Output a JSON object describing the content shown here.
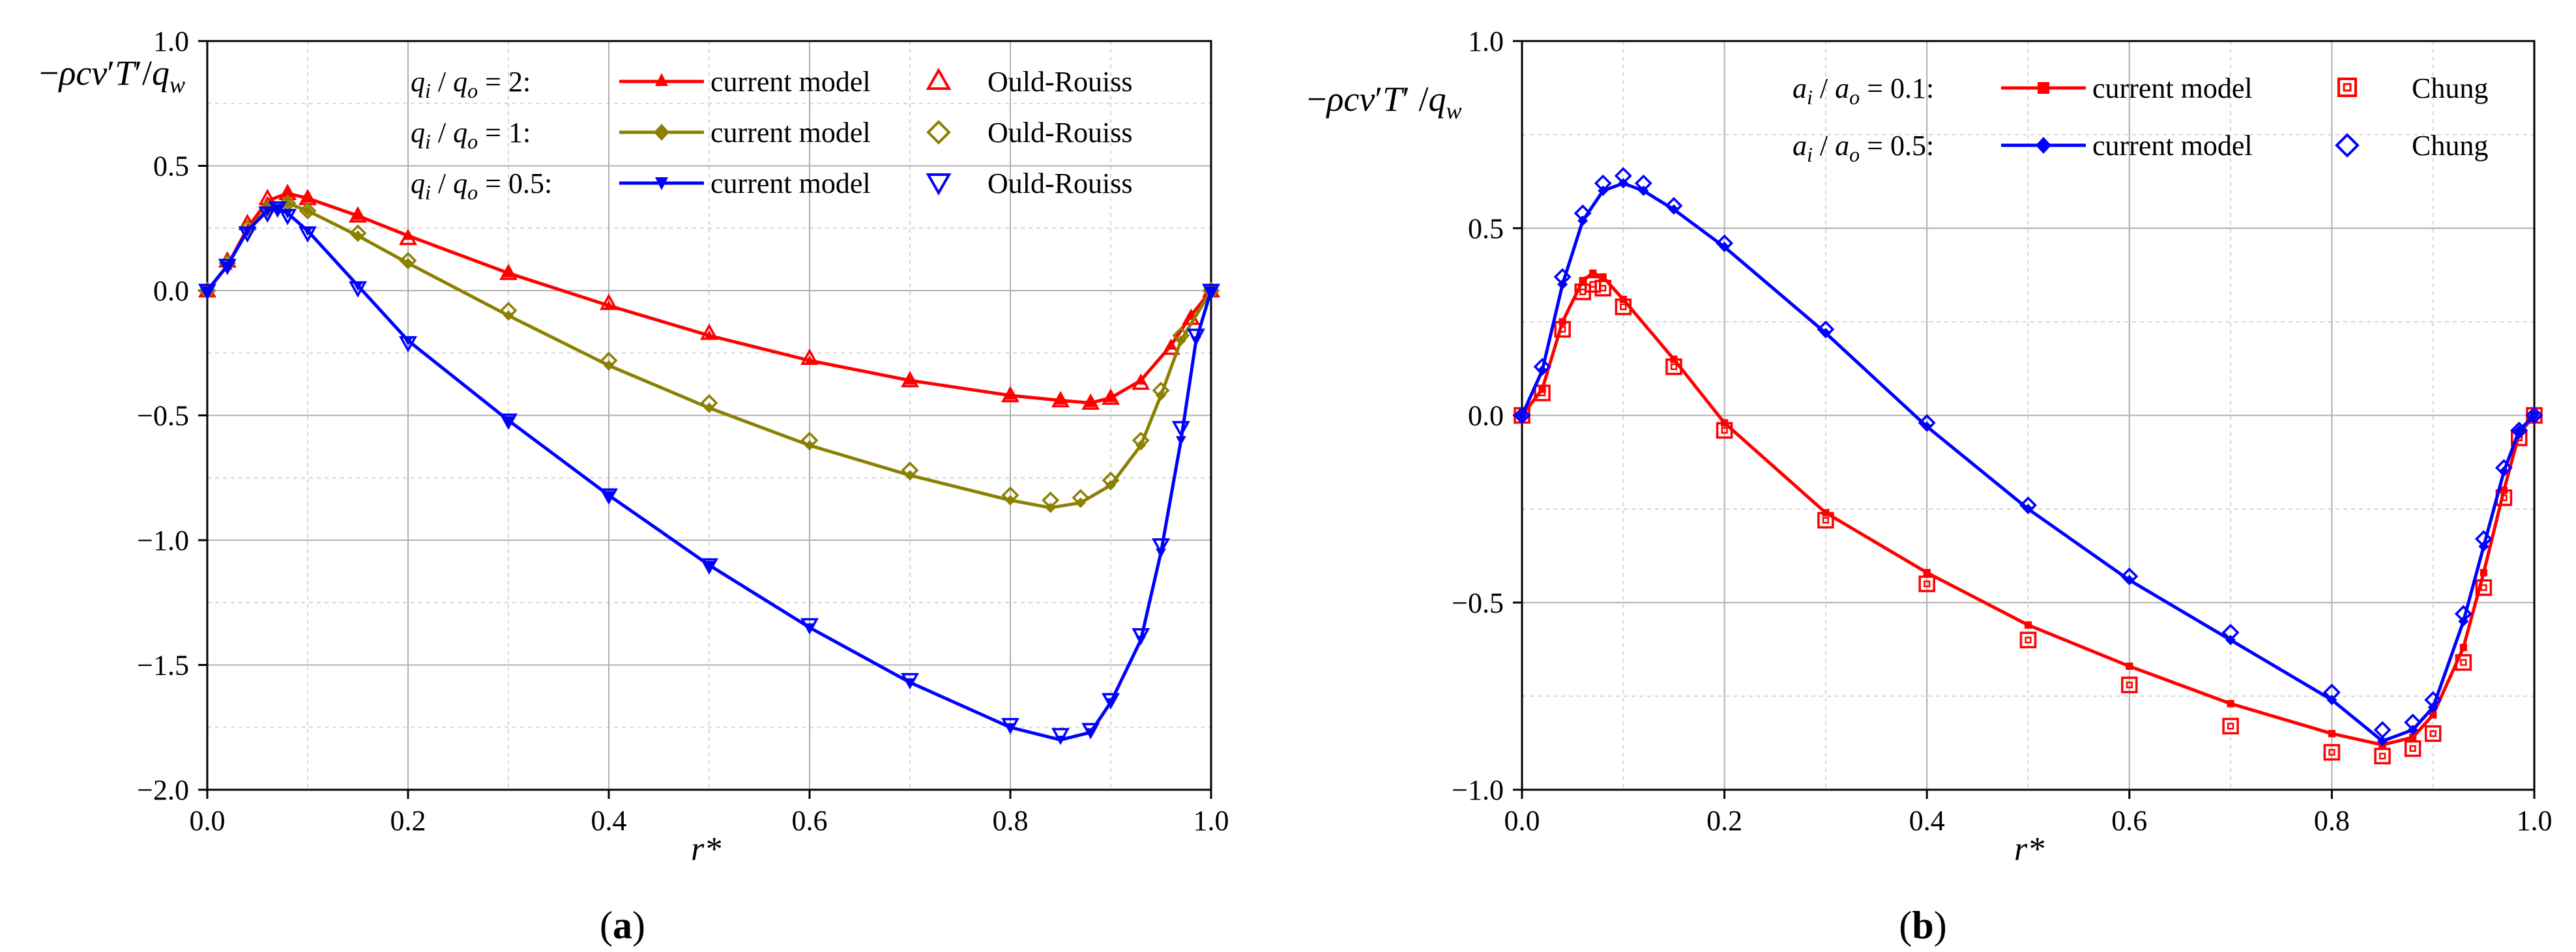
{
  "chart_data": [
    {
      "type": "line",
      "panel_label": "a",
      "caption": "(a)",
      "xlabel": "r*",
      "ylabel": "−ρcv'T'/q_w",
      "xlim": [
        0.0,
        1.0
      ],
      "ylim": [
        -2.0,
        1.0
      ],
      "xticks": [
        0.0,
        0.2,
        0.4,
        0.6,
        0.8,
        1.0
      ],
      "yticks": [
        1.0,
        0.5,
        0.0,
        -0.5,
        -1.0,
        -1.5,
        -2.0
      ],
      "xtick_labels": [
        "0.0",
        "0.2",
        "0.4",
        "0.6",
        "0.8",
        "1.0"
      ],
      "ytick_labels": [
        "1.0",
        "0.5",
        "0.0",
        "−0.5",
        "−1.0",
        "−1.5",
        "−2.0"
      ],
      "grid": true,
      "legend": [
        {
          "condition": "= 2:",
          "model": "current model",
          "ref": "Ould-Rouiss"
        },
        {
          "condition": "= 1:",
          "model": "current model",
          "ref": "Ould-Rouiss"
        },
        {
          "condition": "= 0.5:",
          "model": "current model",
          "ref": "Ould-Rouiss"
        }
      ],
      "series": [
        {
          "name": "q_i/q_o = 2 current model",
          "color": "#FF0000",
          "style": "line",
          "marker": "triangle",
          "x": [
            0.0,
            0.02,
            0.04,
            0.06,
            0.08,
            0.1,
            0.15,
            0.2,
            0.3,
            0.4,
            0.5,
            0.6,
            0.7,
            0.8,
            0.85,
            0.88,
            0.9,
            0.93,
            0.96,
            0.98,
            1.0
          ],
          "y": [
            0.0,
            0.1,
            0.25,
            0.36,
            0.39,
            0.37,
            0.3,
            0.22,
            0.07,
            -0.06,
            -0.18,
            -0.28,
            -0.36,
            -0.42,
            -0.44,
            -0.45,
            -0.43,
            -0.36,
            -0.22,
            -0.1,
            0.0
          ]
        },
        {
          "name": "q_i/q_o = 2 Ould-Rouiss",
          "color": "#FF0000",
          "style": "marker",
          "marker": "triangle-open",
          "x": [
            0.0,
            0.02,
            0.04,
            0.06,
            0.08,
            0.1,
            0.15,
            0.2,
            0.3,
            0.4,
            0.5,
            0.6,
            0.7,
            0.8,
            0.85,
            0.88,
            0.9,
            0.93,
            0.96,
            0.98,
            1.0
          ],
          "y": [
            0.0,
            0.12,
            0.27,
            0.37,
            0.39,
            0.37,
            0.3,
            0.21,
            0.07,
            -0.05,
            -0.17,
            -0.27,
            -0.36,
            -0.42,
            -0.44,
            -0.45,
            -0.43,
            -0.37,
            -0.23,
            -0.11,
            0.0
          ]
        },
        {
          "name": "q_i/q_o = 1 current model",
          "color": "#8B8000",
          "style": "line",
          "marker": "diamond",
          "x": [
            0.0,
            0.02,
            0.04,
            0.06,
            0.08,
            0.1,
            0.15,
            0.2,
            0.3,
            0.4,
            0.5,
            0.6,
            0.7,
            0.8,
            0.84,
            0.87,
            0.9,
            0.93,
            0.95,
            0.97,
            1.0
          ],
          "y": [
            0.0,
            0.1,
            0.24,
            0.33,
            0.35,
            0.32,
            0.22,
            0.11,
            -0.1,
            -0.3,
            -0.47,
            -0.62,
            -0.74,
            -0.84,
            -0.87,
            -0.85,
            -0.78,
            -0.62,
            -0.42,
            -0.2,
            0.0
          ]
        },
        {
          "name": "q_i/q_o = 1 Ould-Rouiss",
          "color": "#8B8000",
          "style": "marker",
          "marker": "diamond-open",
          "x": [
            0.0,
            0.02,
            0.04,
            0.06,
            0.08,
            0.1,
            0.15,
            0.2,
            0.3,
            0.4,
            0.5,
            0.6,
            0.7,
            0.8,
            0.84,
            0.87,
            0.9,
            0.93,
            0.95,
            0.97,
            1.0
          ],
          "y": [
            0.0,
            0.11,
            0.25,
            0.33,
            0.35,
            0.32,
            0.23,
            0.12,
            -0.08,
            -0.28,
            -0.45,
            -0.6,
            -0.72,
            -0.82,
            -0.84,
            -0.83,
            -0.76,
            -0.6,
            -0.4,
            -0.18,
            0.0
          ]
        },
        {
          "name": "q_i/q_o = 0.5 current model",
          "color": "#0000FF",
          "style": "line",
          "marker": "triangle-down",
          "x": [
            0.0,
            0.02,
            0.04,
            0.06,
            0.07,
            0.08,
            0.1,
            0.15,
            0.2,
            0.3,
            0.4,
            0.5,
            0.6,
            0.7,
            0.8,
            0.85,
            0.88,
            0.9,
            0.93,
            0.95,
            0.97,
            0.985,
            1.0
          ],
          "y": [
            0.0,
            0.1,
            0.24,
            0.32,
            0.33,
            0.31,
            0.24,
            0.02,
            -0.2,
            -0.52,
            -0.82,
            -1.1,
            -1.35,
            -1.57,
            -1.75,
            -1.8,
            -1.77,
            -1.65,
            -1.4,
            -1.05,
            -0.6,
            -0.2,
            0.0
          ]
        },
        {
          "name": "q_i/q_o = 0.5 Ould-Rouiss",
          "color": "#0000FF",
          "style": "marker",
          "marker": "triangle-down-open",
          "x": [
            0.0,
            0.02,
            0.04,
            0.06,
            0.07,
            0.08,
            0.1,
            0.15,
            0.2,
            0.3,
            0.4,
            0.5,
            0.6,
            0.7,
            0.8,
            0.85,
            0.88,
            0.9,
            0.93,
            0.95,
            0.97,
            0.985,
            1.0
          ],
          "y": [
            0.0,
            0.1,
            0.23,
            0.31,
            0.33,
            0.3,
            0.23,
            0.01,
            -0.21,
            -0.52,
            -0.82,
            -1.1,
            -1.34,
            -1.56,
            -1.74,
            -1.78,
            -1.76,
            -1.64,
            -1.38,
            -1.02,
            -0.55,
            -0.18,
            0.0
          ]
        }
      ]
    },
    {
      "type": "line",
      "panel_label": "b",
      "caption": "(b)",
      "xlabel": "r*",
      "ylabel": "−ρcv'T'/q_w",
      "xlim": [
        0.0,
        1.0
      ],
      "ylim": [
        -1.0,
        1.0
      ],
      "xticks": [
        0.0,
        0.2,
        0.4,
        0.6,
        0.8,
        1.0
      ],
      "yticks": [
        1.0,
        0.5,
        0.0,
        -0.5,
        -1.0
      ],
      "xtick_labels": [
        "0.0",
        "0.2",
        "0.4",
        "0.6",
        "0.8",
        "1.0"
      ],
      "ytick_labels": [
        "1.0",
        "0.5",
        "0.0",
        "−0.5",
        "−1.0"
      ],
      "grid": true,
      "legend": [
        {
          "condition": "= 0.1:",
          "model": "current model",
          "ref": "Chung"
        },
        {
          "condition": "= 0.5:",
          "model": "current model",
          "ref": "Chung"
        }
      ],
      "series": [
        {
          "name": "a_i/a_o = 0.1 current model",
          "color": "#FF0000",
          "style": "line",
          "marker": "square",
          "x": [
            0.0,
            0.02,
            0.04,
            0.06,
            0.07,
            0.08,
            0.1,
            0.15,
            0.2,
            0.3,
            0.4,
            0.5,
            0.6,
            0.7,
            0.8,
            0.85,
            0.88,
            0.9,
            0.93,
            0.95,
            0.97,
            0.985,
            1.0
          ],
          "y": [
            0.0,
            0.07,
            0.25,
            0.36,
            0.38,
            0.37,
            0.31,
            0.15,
            -0.02,
            -0.26,
            -0.42,
            -0.56,
            -0.67,
            -0.77,
            -0.85,
            -0.88,
            -0.86,
            -0.8,
            -0.62,
            -0.42,
            -0.2,
            -0.05,
            0.0
          ]
        },
        {
          "name": "a_i/a_o = 0.1 Chung",
          "color": "#FF0000",
          "style": "marker",
          "marker": "square-open",
          "x": [
            0.0,
            0.02,
            0.04,
            0.06,
            0.07,
            0.08,
            0.1,
            0.15,
            0.2,
            0.3,
            0.4,
            0.5,
            0.6,
            0.7,
            0.8,
            0.85,
            0.88,
            0.9,
            0.93,
            0.95,
            0.97,
            0.985,
            1.0
          ],
          "y": [
            0.0,
            0.06,
            0.23,
            0.33,
            0.35,
            0.34,
            0.29,
            0.13,
            -0.04,
            -0.28,
            -0.45,
            -0.6,
            -0.72,
            -0.83,
            -0.9,
            -0.91,
            -0.89,
            -0.85,
            -0.66,
            -0.46,
            -0.22,
            -0.06,
            0.0
          ]
        },
        {
          "name": "a_i/a_o = 0.5 current model",
          "color": "#0000FF",
          "style": "line",
          "marker": "diamond",
          "x": [
            0.0,
            0.02,
            0.04,
            0.06,
            0.08,
            0.1,
            0.12,
            0.15,
            0.2,
            0.3,
            0.4,
            0.5,
            0.6,
            0.7,
            0.8,
            0.85,
            0.88,
            0.9,
            0.93,
            0.95,
            0.97,
            0.985,
            1.0
          ],
          "y": [
            0.0,
            0.12,
            0.35,
            0.52,
            0.6,
            0.62,
            0.6,
            0.55,
            0.45,
            0.22,
            -0.03,
            -0.25,
            -0.44,
            -0.6,
            -0.76,
            -0.87,
            -0.84,
            -0.78,
            -0.55,
            -0.35,
            -0.15,
            -0.04,
            0.0
          ]
        },
        {
          "name": "a_i/a_o = 0.5 Chung",
          "color": "#0000FF",
          "style": "marker",
          "marker": "diamond-open",
          "x": [
            0.0,
            0.02,
            0.04,
            0.06,
            0.08,
            0.1,
            0.12,
            0.15,
            0.2,
            0.3,
            0.4,
            0.5,
            0.6,
            0.7,
            0.8,
            0.85,
            0.88,
            0.9,
            0.93,
            0.95,
            0.97,
            0.985,
            1.0
          ],
          "y": [
            0.0,
            0.13,
            0.37,
            0.54,
            0.62,
            0.64,
            0.62,
            0.56,
            0.46,
            0.23,
            -0.02,
            -0.24,
            -0.43,
            -0.58,
            -0.74,
            -0.84,
            -0.82,
            -0.76,
            -0.53,
            -0.33,
            -0.14,
            -0.04,
            0.0
          ]
        }
      ]
    }
  ]
}
